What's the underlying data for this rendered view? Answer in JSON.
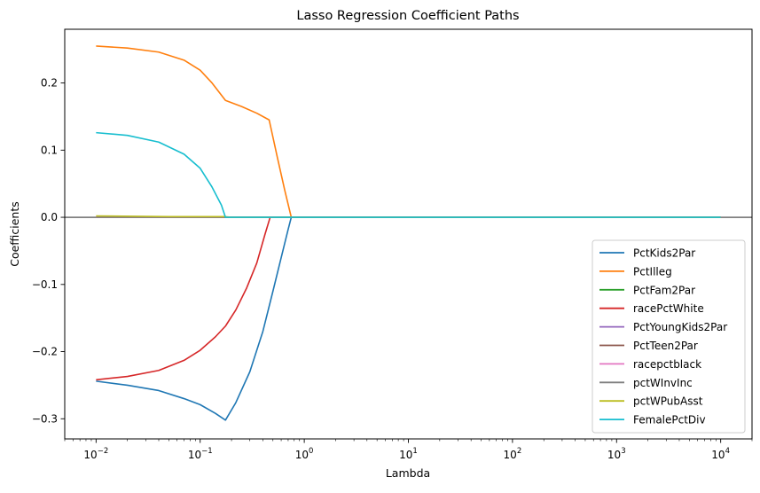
{
  "chart_data": {
    "type": "line",
    "title": "Lasso Regression Coefficient Paths",
    "xlabel": "Lambda",
    "ylabel": "Coefficients",
    "xscale": "log",
    "xlim": [
      0.005,
      20000
    ],
    "ylim": [
      -0.33,
      0.28
    ],
    "x_ticks": [
      0.01,
      0.1,
      1,
      10,
      100,
      1000,
      10000
    ],
    "x_tick_labels": [
      {
        "base": "10",
        "exp": "−2"
      },
      {
        "base": "10",
        "exp": "−1"
      },
      {
        "base": "10",
        "exp": "0"
      },
      {
        "base": "10",
        "exp": "1"
      },
      {
        "base": "10",
        "exp": "2"
      },
      {
        "base": "10",
        "exp": "3"
      },
      {
        "base": "10",
        "exp": "4"
      }
    ],
    "y_ticks": [
      -0.3,
      -0.2,
      -0.1,
      0.0,
      0.1,
      0.2
    ],
    "y_tick_labels": [
      "−0.3",
      "−0.2",
      "−0.1",
      "0.0",
      "0.1",
      "0.2"
    ],
    "reference_line_y": 0,
    "legend_position": "lower-right",
    "grid": false,
    "series": [
      {
        "name": "PctKids2Par",
        "color": "#1f77b4",
        "points": [
          [
            0.01,
            -0.244
          ],
          [
            0.02,
            -0.25
          ],
          [
            0.04,
            -0.258
          ],
          [
            0.07,
            -0.27
          ],
          [
            0.1,
            -0.279
          ],
          [
            0.14,
            -0.292
          ],
          [
            0.175,
            -0.302
          ],
          [
            0.22,
            -0.276
          ],
          [
            0.3,
            -0.23
          ],
          [
            0.4,
            -0.17
          ],
          [
            0.5,
            -0.11
          ],
          [
            0.6,
            -0.06
          ],
          [
            0.7,
            -0.018
          ],
          [
            0.75,
            0
          ],
          [
            10000,
            0
          ]
        ]
      },
      {
        "name": "PctIlleg",
        "color": "#ff7f0e",
        "points": [
          [
            0.01,
            0.255
          ],
          [
            0.02,
            0.252
          ],
          [
            0.04,
            0.246
          ],
          [
            0.07,
            0.234
          ],
          [
            0.1,
            0.219
          ],
          [
            0.13,
            0.2
          ],
          [
            0.175,
            0.174
          ],
          [
            0.25,
            0.165
          ],
          [
            0.35,
            0.155
          ],
          [
            0.46,
            0.145
          ],
          [
            0.55,
            0.09
          ],
          [
            0.65,
            0.04
          ],
          [
            0.75,
            0
          ],
          [
            10000,
            0
          ]
        ]
      },
      {
        "name": "PctFam2Par",
        "color": "#2ca02c",
        "points": [
          [
            0.01,
            0
          ],
          [
            10000,
            0
          ]
        ]
      },
      {
        "name": "racePctWhite",
        "color": "#d62728",
        "points": [
          [
            0.01,
            -0.242
          ],
          [
            0.02,
            -0.237
          ],
          [
            0.04,
            -0.228
          ],
          [
            0.07,
            -0.213
          ],
          [
            0.1,
            -0.198
          ],
          [
            0.14,
            -0.178
          ],
          [
            0.175,
            -0.162
          ],
          [
            0.22,
            -0.138
          ],
          [
            0.28,
            -0.105
          ],
          [
            0.35,
            -0.068
          ],
          [
            0.42,
            -0.025
          ],
          [
            0.47,
            0
          ],
          [
            10000,
            0
          ]
        ]
      },
      {
        "name": "PctYoungKids2Par",
        "color": "#9467bd",
        "points": [
          [
            0.01,
            0
          ],
          [
            10000,
            0
          ]
        ]
      },
      {
        "name": "PctTeen2Par",
        "color": "#8c564b",
        "points": [
          [
            0.01,
            0
          ],
          [
            10000,
            0
          ]
        ]
      },
      {
        "name": "racepctblack",
        "color": "#e377c2",
        "points": [
          [
            0.01,
            0
          ],
          [
            10000,
            0
          ]
        ]
      },
      {
        "name": "pctWInvInc",
        "color": "#7f7f7f",
        "points": [
          [
            0.01,
            0
          ],
          [
            10000,
            0
          ]
        ]
      },
      {
        "name": "pctWPubAsst",
        "color": "#bcbd22",
        "points": [
          [
            0.01,
            0.002
          ],
          [
            0.05,
            0.001
          ],
          [
            0.17,
            0.001
          ],
          [
            0.2,
            0
          ],
          [
            10000,
            0
          ]
        ]
      },
      {
        "name": "FemalePctDiv",
        "color": "#17becf",
        "points": [
          [
            0.01,
            0.126
          ],
          [
            0.02,
            0.122
          ],
          [
            0.04,
            0.112
          ],
          [
            0.07,
            0.094
          ],
          [
            0.1,
            0.073
          ],
          [
            0.13,
            0.045
          ],
          [
            0.16,
            0.018
          ],
          [
            0.175,
            0
          ],
          [
            10000,
            0
          ]
        ]
      }
    ]
  }
}
